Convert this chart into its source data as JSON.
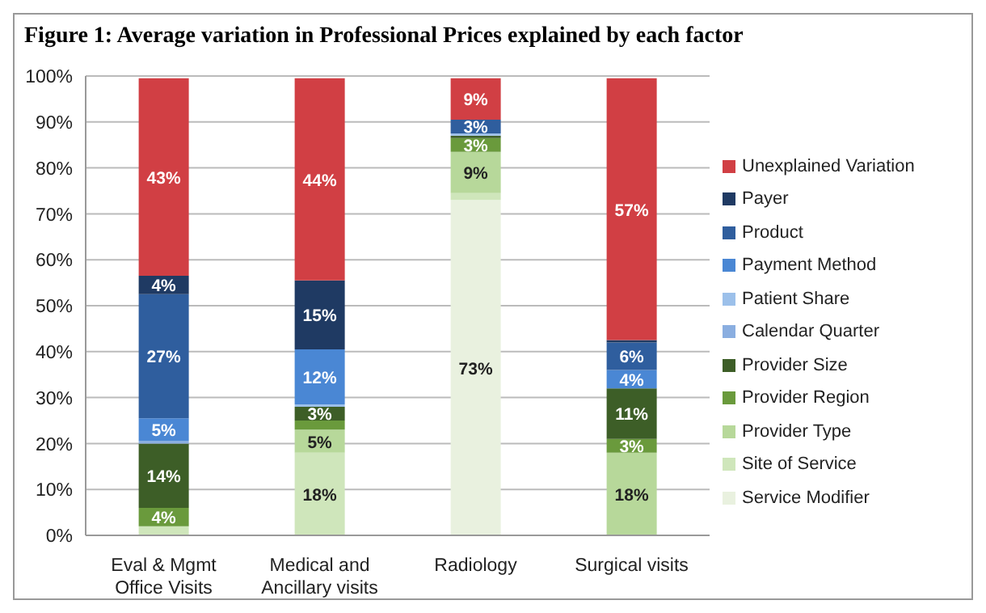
{
  "chart_data": {
    "type": "bar",
    "title": "Figure 1:  Average variation in Professional Prices explained by each factor",
    "categories": [
      "Eval & Mgmt Office Visits",
      "Medical and Ancillary visits",
      "Radiology",
      "Surgical visits"
    ],
    "stacked": true,
    "ylim": [
      0,
      100
    ],
    "yticks": [
      {
        "value": 0,
        "label": "0%"
      },
      {
        "value": 10,
        "label": "10%"
      },
      {
        "value": 20,
        "label": "20%"
      },
      {
        "value": 30,
        "label": "30%"
      },
      {
        "value": 40,
        "label": "40%"
      },
      {
        "value": 50,
        "label": "50%"
      },
      {
        "value": 60,
        "label": "60%"
      },
      {
        "value": 70,
        "label": "70%"
      },
      {
        "value": 80,
        "label": "80%"
      },
      {
        "value": 90,
        "label": "90%"
      },
      {
        "value": 100,
        "label": "100%"
      }
    ],
    "grid": "y",
    "legend": "right",
    "series": [
      {
        "name": "Service Modifier",
        "color": "#e9f1df",
        "values": [
          0,
          0,
          73,
          0
        ],
        "value_labels": [
          null,
          null,
          "73%",
          null
        ]
      },
      {
        "name": "Site of Service",
        "color": "#cfe6bb",
        "values": [
          2,
          18,
          1.5,
          0
        ],
        "value_labels": [
          null,
          "18%",
          null,
          null
        ]
      },
      {
        "name": "Provider Type",
        "color": "#b7d89a",
        "values": [
          0,
          5,
          9,
          18
        ],
        "value_labels": [
          null,
          "5%",
          "9%",
          "18%"
        ]
      },
      {
        "name": "Provider Region",
        "color": "#6a9a3c",
        "values": [
          4,
          2,
          3,
          3
        ],
        "value_labels": [
          "4%",
          null,
          "3%",
          "3%"
        ]
      },
      {
        "name": "Provider Size",
        "color": "#3d5e27",
        "values": [
          14,
          3,
          0.5,
          11
        ],
        "value_labels": [
          "14%",
          "3%",
          null,
          "11%"
        ]
      },
      {
        "name": "Calendar Quarter",
        "color": "#8aaee0",
        "values": [
          0.5,
          0,
          0,
          0
        ],
        "value_labels": [
          null,
          null,
          null,
          null
        ]
      },
      {
        "name": "Patient Share",
        "color": "#9cc0ea",
        "values": [
          0,
          0.5,
          0.5,
          0
        ],
        "value_labels": [
          null,
          null,
          null,
          null
        ]
      },
      {
        "name": "Payment Method",
        "color": "#4a87d4",
        "values": [
          5,
          12,
          0,
          4
        ],
        "value_labels": [
          "5%",
          "12%",
          null,
          "4%"
        ]
      },
      {
        "name": "Product",
        "color": "#2f5e9e",
        "values": [
          27,
          0,
          3,
          6
        ],
        "value_labels": [
          "27%",
          null,
          "3%",
          "6%"
        ]
      },
      {
        "name": "Payer",
        "color": "#1f3a63",
        "values": [
          4,
          15,
          0,
          0.5
        ],
        "value_labels": [
          "4%",
          "15%",
          null,
          null
        ]
      },
      {
        "name": "Unexplained Variation",
        "color": "#d13f44",
        "values": [
          43,
          44,
          9,
          57
        ],
        "value_labels": [
          "43%",
          "44%",
          "9%",
          "57%"
        ]
      }
    ]
  }
}
